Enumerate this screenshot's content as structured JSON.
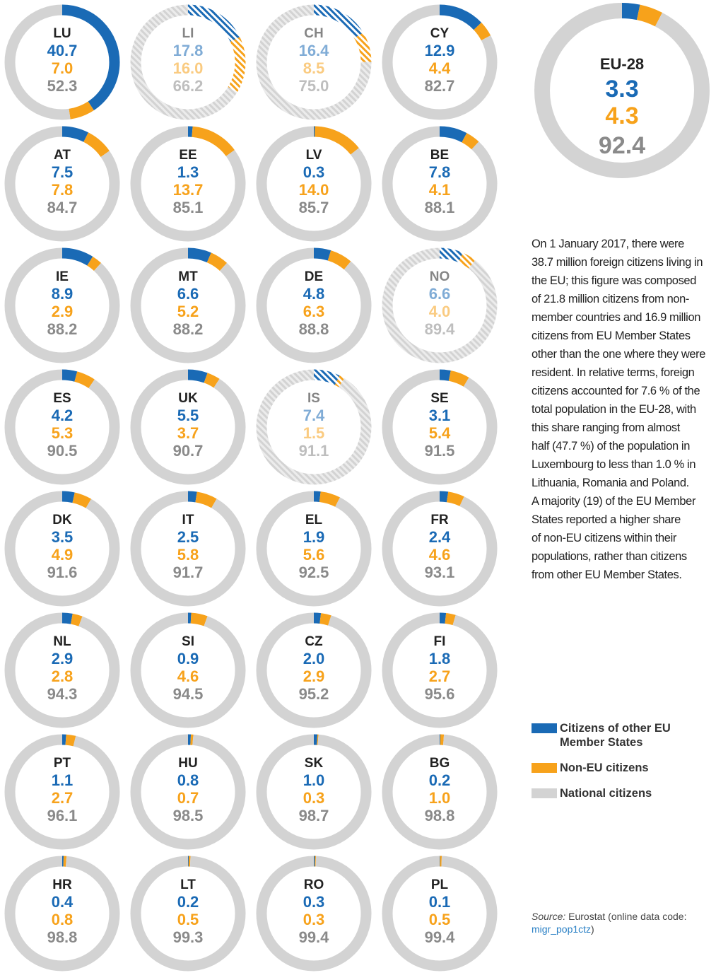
{
  "chart_data": [
    {
      "type": "donut",
      "categories": [
        "LU",
        "LI",
        "CH",
        "CY",
        "AT",
        "EE",
        "LV",
        "BE",
        "IE",
        "MT",
        "DE",
        "NO",
        "ES",
        "UK",
        "IS",
        "SE",
        "DK",
        "IT",
        "EL",
        "FR",
        "NL",
        "SI",
        "CZ",
        "FI",
        "PT",
        "HU",
        "SK",
        "BG",
        "HR",
        "LT",
        "RO",
        "PL"
      ],
      "hatched": [
        false,
        true,
        true,
        false,
        false,
        false,
        false,
        false,
        false,
        false,
        false,
        true,
        false,
        false,
        true,
        false,
        false,
        false,
        false,
        false,
        false,
        false,
        false,
        false,
        false,
        false,
        false,
        false,
        false,
        false,
        false,
        false
      ],
      "series": [
        {
          "name": "Citizens of other EU Member States",
          "color": "#1a6ab5",
          "values": [
            40.7,
            17.8,
            16.4,
            12.9,
            7.5,
            1.3,
            0.3,
            7.8,
            8.9,
            6.6,
            4.8,
            6.6,
            4.2,
            5.5,
            7.4,
            3.1,
            3.5,
            2.5,
            1.9,
            2.4,
            2.9,
            0.9,
            2.0,
            1.8,
            1.1,
            0.8,
            1.0,
            0.2,
            0.4,
            0.2,
            0.3,
            0.1
          ],
          "value_labels": [
            "40.7",
            "17.8",
            "16.4",
            "12.9",
            "7.5",
            "1.3",
            "0.3",
            "7.8",
            "8.9",
            "6.6",
            "4.8",
            "6.6",
            "4.2",
            "5.5",
            "7.4",
            "3.1",
            "3.5",
            "2.5",
            "1.9",
            "2.4",
            "2.9",
            "0.9",
            "2.0",
            "1.8",
            "1.1",
            "0.8",
            "1.0",
            "0.2",
            "0.4",
            "0.2",
            "0.3",
            "0.1"
          ]
        },
        {
          "name": "Non-EU citizens",
          "color": "#f7a21b",
          "values": [
            7.0,
            16.0,
            8.5,
            4.4,
            7.8,
            13.7,
            14.0,
            4.1,
            2.9,
            5.2,
            6.3,
            4.0,
            5.3,
            3.7,
            1.5,
            5.4,
            4.9,
            5.8,
            5.6,
            4.6,
            2.8,
            4.6,
            2.9,
            2.7,
            2.7,
            0.7,
            0.3,
            1.0,
            0.8,
            0.5,
            0.3,
            0.5
          ],
          "value_labels": [
            "7.0",
            "16.0",
            "8.5",
            "4.4",
            "7.8",
            "13.7",
            "14.0",
            "4.1",
            "2.9",
            "5.2",
            "6.3",
            "4.0",
            "5.3",
            "3.7",
            "1.5",
            "5.4",
            "4.9",
            "5.8",
            "5.6",
            "4.6",
            "2.8",
            "4.6",
            "2.9",
            "2.7",
            "2.7",
            "0.7",
            "0.3",
            "1.0",
            "0.8",
            "0.5",
            "0.3",
            "0.5"
          ]
        },
        {
          "name": "National citizens",
          "color": "#d3d3d3",
          "values": [
            52.3,
            66.2,
            75.0,
            82.7,
            84.7,
            85.1,
            85.7,
            88.1,
            88.2,
            88.2,
            88.8,
            89.4,
            90.5,
            90.7,
            91.1,
            91.5,
            91.6,
            91.7,
            92.5,
            93.1,
            94.3,
            94.5,
            95.2,
            95.6,
            96.1,
            98.5,
            98.7,
            98.8,
            98.8,
            99.3,
            99.4,
            99.4
          ],
          "value_labels": [
            "52.3",
            "66.2",
            "75.0",
            "82.7",
            "84.7",
            "85.1",
            "85.7",
            "88.1",
            "88.2",
            "88.2",
            "88.8",
            "89.4",
            "90.5",
            "90.7",
            "91.1",
            "91.5",
            "91.6",
            "91.7",
            "92.5",
            "93.1",
            "94.3",
            "94.5",
            "95.2",
            "95.6",
            "96.1",
            "98.5",
            "98.7",
            "98.8",
            "98.8",
            "99.3",
            "99.4",
            "99.4"
          ]
        }
      ]
    },
    {
      "type": "donut",
      "categories": [
        "EU-28"
      ],
      "series": [
        {
          "color": "#1a6ab5",
          "values": [
            3.3
          ]
        },
        {
          "color": "#f7a21b",
          "values": [
            4.3
          ]
        },
        {
          "color": "#d3d3d3",
          "values": [
            92.4
          ]
        }
      ]
    }
  ],
  "text": [
    "On 1 January 2017, there were",
    "38.7 million foreign citizens living in",
    "the EU; this figure was composed",
    "of 21.8 million citizens from non-",
    "member countries and 16.9 million",
    "citizens from EU Member States",
    "other than the one where they were",
    "resident. In relative terms, foreign",
    "citizens accounted for 7.6 % of the",
    "total population in the EU-28, with",
    "this share ranging from almost",
    "half (47.7 %) of the population in",
    "Luxembourg to less than 1.0 % in",
    "Lithuania, Romania and Poland.",
    "A majority (19) of the EU Member",
    "States reported a higher share",
    "of non-EU citizens within their",
    "populations, rather than citizens",
    "from other EU Member States."
  ],
  "source": {
    "label": "Source:",
    "text": "Eurostat (online data code:",
    "code": "migr_pop1ctz",
    "close": ")"
  }
}
